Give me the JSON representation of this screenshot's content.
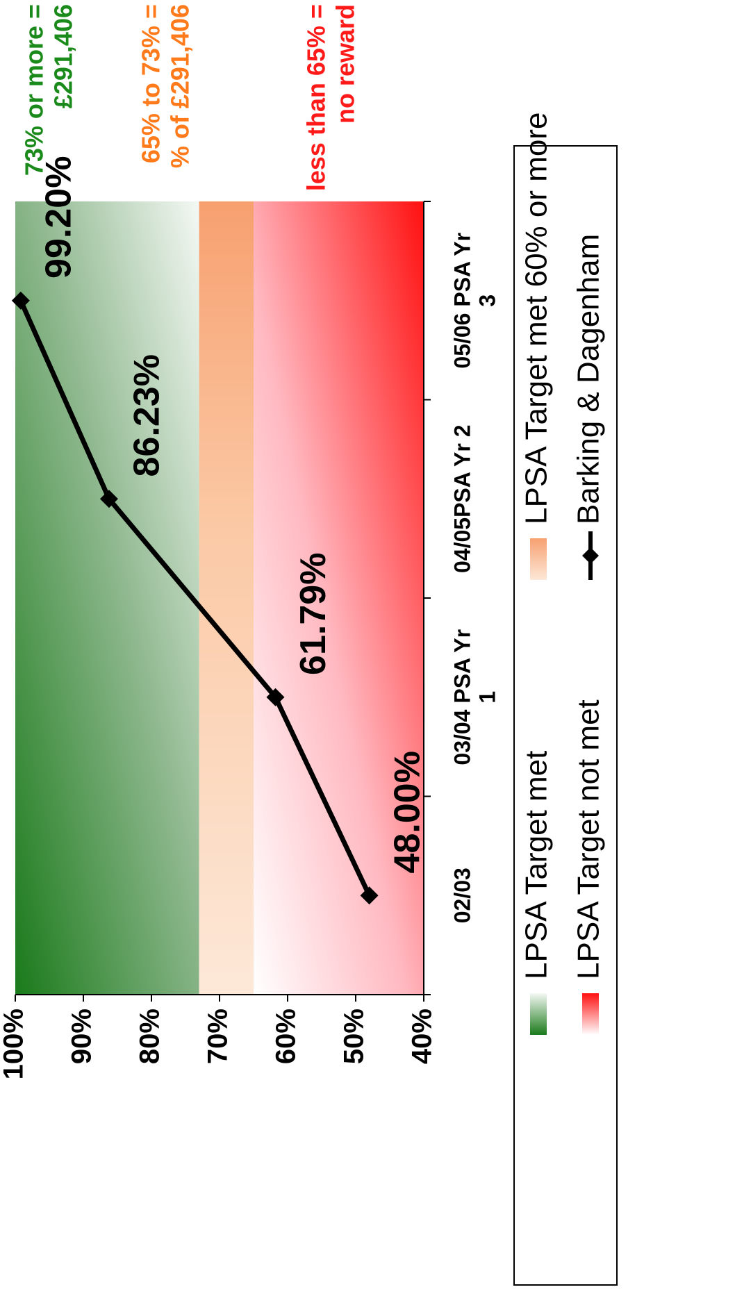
{
  "chart_data": {
    "type": "line",
    "orientation": "rotated-90-ccw",
    "categories": [
      [
        "02/03"
      ],
      [
        "03/04 PSA Yr",
        "1"
      ],
      [
        "04/05PSA Yr 2"
      ],
      [
        "05/06 PSA Yr",
        "3"
      ]
    ],
    "series": [
      {
        "name": "Barking & Dagenham",
        "values": [
          48.0,
          61.79,
          86.23,
          99.2
        ],
        "labels": [
          "48.00%",
          "61.79%",
          "86.23%",
          "99.20%"
        ],
        "color": "#000000",
        "marker": "diamond"
      }
    ],
    "ylim": [
      40,
      100
    ],
    "y_ticks": [
      "40%",
      "50%",
      "60%",
      "70%",
      "80%",
      "90%",
      "100%"
    ],
    "bands": [
      {
        "from": 73,
        "to": 100,
        "color": "#1a7a1a",
        "label": "LPSA Target met"
      },
      {
        "from": 65,
        "to": 73,
        "color": "#f7a070",
        "label": "LPSA Target met 60% or more"
      },
      {
        "from": 40,
        "to": 65,
        "color": "#ff1a1a",
        "label": "LPSA Target not met"
      }
    ],
    "band_notes": [
      {
        "lines": [
          "73%  or more =",
          "£291,406"
        ],
        "color": "#1a8a1a"
      },
      {
        "lines": [
          "65% to 73% =",
          "% of £291,406"
        ],
        "color": "#ff7a1a"
      },
      {
        "lines": [
          "less than 65% =",
          "no reward"
        ],
        "color": "#ff1a1a"
      }
    ],
    "legend": {
      "position": "right",
      "items": [
        "LPSA Target met",
        "LPSA Target met 60% or more",
        "LPSA Target not met",
        "Barking & Dagenham"
      ]
    },
    "grid": false
  }
}
